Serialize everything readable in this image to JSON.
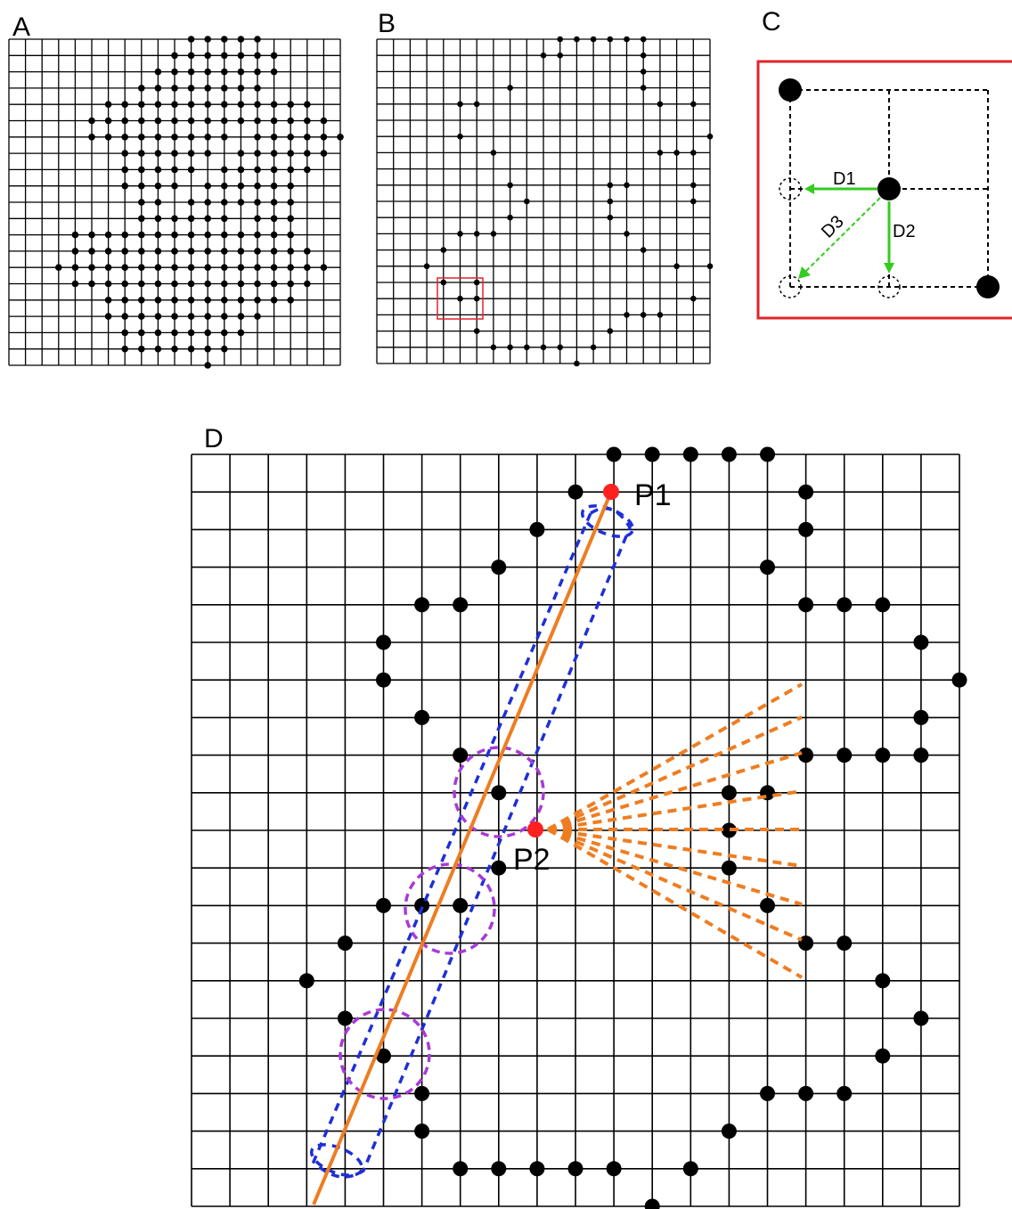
{
  "figure": {
    "panels": [
      {
        "id": "A",
        "label": "A"
      },
      {
        "id": "B",
        "label": "B"
      },
      {
        "id": "C",
        "label": "C"
      },
      {
        "id": "D",
        "label": "D"
      }
    ],
    "panel_c": {
      "arrows": [
        {
          "id": "D1",
          "label": "D1"
        },
        {
          "id": "D2",
          "label": "D2"
        },
        {
          "id": "D3",
          "label": "D3"
        }
      ]
    },
    "panel_d": {
      "points": [
        {
          "id": "P1",
          "label": "P1"
        },
        {
          "id": "P2",
          "label": "P2"
        }
      ]
    },
    "colors": {
      "grid": "#000000",
      "dot": "#000000",
      "highlight_box": "#e0242a",
      "arrow": "#33cc1f",
      "selected_point": "#ff2020",
      "fit_line": "#ee7d22",
      "search_corridor": "#1f2fd6",
      "neighbourhood_circle": "#a83ad8",
      "ray_fan": "#ee7d22"
    }
  }
}
